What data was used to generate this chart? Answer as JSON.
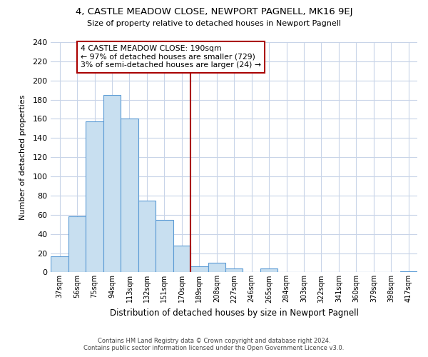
{
  "title": "4, CASTLE MEADOW CLOSE, NEWPORT PAGNELL, MK16 9EJ",
  "subtitle": "Size of property relative to detached houses in Newport Pagnell",
  "xlabel": "Distribution of detached houses by size in Newport Pagnell",
  "ylabel": "Number of detached properties",
  "bar_labels": [
    "37sqm",
    "56sqm",
    "75sqm",
    "94sqm",
    "113sqm",
    "132sqm",
    "151sqm",
    "170sqm",
    "189sqm",
    "208sqm",
    "227sqm",
    "246sqm",
    "265sqm",
    "284sqm",
    "303sqm",
    "322sqm",
    "341sqm",
    "360sqm",
    "379sqm",
    "398sqm",
    "417sqm"
  ],
  "bar_values": [
    17,
    58,
    157,
    185,
    160,
    75,
    55,
    28,
    6,
    10,
    4,
    0,
    4,
    0,
    0,
    0,
    0,
    0,
    0,
    0,
    1
  ],
  "bar_color": "#c8dff0",
  "bar_edge_color": "#5b9bd5",
  "vline_color": "#aa0000",
  "ylim": [
    0,
    240
  ],
  "yticks": [
    0,
    20,
    40,
    60,
    80,
    100,
    120,
    140,
    160,
    180,
    200,
    220,
    240
  ],
  "annotation_title": "4 CASTLE MEADOW CLOSE: 190sqm",
  "annotation_line1": "← 97% of detached houses are smaller (729)",
  "annotation_line2": "3% of semi-detached houses are larger (24) →",
  "annotation_box_color": "#ffffff",
  "annotation_box_edge": "#aa0000",
  "footer_line1": "Contains HM Land Registry data © Crown copyright and database right 2024.",
  "footer_line2": "Contains public sector information licensed under the Open Government Licence v3.0.",
  "background_color": "#ffffff",
  "grid_color": "#c8d4e8"
}
